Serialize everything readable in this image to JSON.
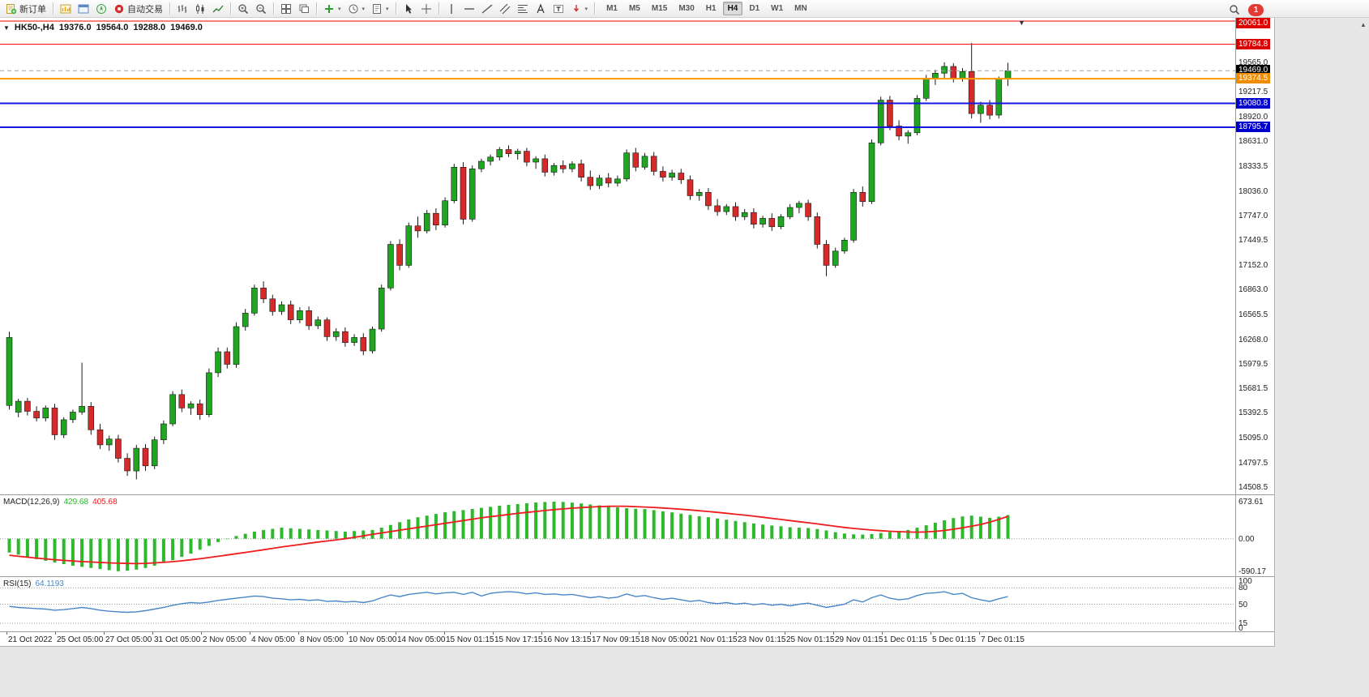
{
  "toolbar": {
    "items": [
      {
        "name": "new-order-button",
        "icon": "new-order",
        "label": "新订单"
      },
      {
        "sep": true
      },
      {
        "name": "market-watch-button",
        "icon": "market-watch"
      },
      {
        "name": "data-window-button",
        "icon": "data-window"
      },
      {
        "name": "navigator-button",
        "icon": "navigator"
      },
      {
        "name": "autotrading-button",
        "icon": "autotrading",
        "label": "自动交易"
      },
      {
        "sep": true
      },
      {
        "name": "bar-chart-button",
        "icon": "chart-bars"
      },
      {
        "name": "candlestick-chart-button",
        "icon": "chart-candles"
      },
      {
        "name": "line-chart-button",
        "icon": "chart-line"
      },
      {
        "sep": true
      },
      {
        "name": "zoom-in-button",
        "icon": "zoom-in"
      },
      {
        "name": "zoom-out-button",
        "icon": "zoom-out"
      },
      {
        "sep": true
      },
      {
        "name": "tile-windows-button",
        "icon": "tile"
      },
      {
        "name": "cascade-windows-button",
        "icon": "cascade"
      },
      {
        "sep": true
      },
      {
        "name": "indicators-button",
        "icon": "indicators",
        "caret": true
      },
      {
        "name": "periods-button",
        "icon": "clock",
        "caret": true
      },
      {
        "name": "templates-button",
        "icon": "template",
        "caret": true
      },
      {
        "sep": true
      },
      {
        "name": "cursor-button",
        "icon": "cursor"
      },
      {
        "name": "crosshair-button",
        "icon": "crosshair"
      },
      {
        "sep": true
      },
      {
        "name": "vertical-line-button",
        "icon": "vline"
      },
      {
        "name": "horizontal-line-button",
        "icon": "hline"
      },
      {
        "name": "trendline-button",
        "icon": "trend"
      },
      {
        "name": "channel-button",
        "icon": "channel"
      },
      {
        "name": "fibonacci-button",
        "icon": "fibo"
      },
      {
        "name": "text-button",
        "icon": "text"
      },
      {
        "name": "label-button",
        "icon": "textlabel"
      },
      {
        "name": "arrows-button",
        "icon": "arrowtool",
        "caret": true
      },
      {
        "sep": true
      }
    ],
    "timeframes": [
      "M1",
      "M5",
      "M15",
      "M30",
      "H1",
      "H4",
      "D1",
      "W1",
      "MN"
    ],
    "active_timeframe": "H4",
    "notification_count": "1"
  },
  "chart": {
    "symbol_period": "HK50-,H4",
    "open": "19376.0",
    "high": "19564.0",
    "low": "19288.0",
    "close": "19469.0"
  },
  "chart_data": {
    "type": "candlestick",
    "symbol": "HK50-",
    "timeframe": "H4",
    "ohlc_current": {
      "open": 19376.0,
      "high": 19564.0,
      "low": 19288.0,
      "close": 19469.0
    },
    "bull_color": "#1fa51f",
    "bear_color": "#d42a2a",
    "price_axis": {
      "range_top": 20100,
      "range_bottom": 14420,
      "tick_labels": [
        19565.0,
        19217.5,
        18920.0,
        18631.0,
        18333.5,
        18036.0,
        17747.0,
        17449.5,
        17152.0,
        16863.0,
        16565.5,
        16268.0,
        15979.5,
        15681.5,
        15392.5,
        15095.0,
        14797.5,
        14508.5
      ]
    },
    "hlines": [
      {
        "price": 20061.0,
        "color": "#f20000",
        "width": 1,
        "style": "solid",
        "badge": "#dd0000"
      },
      {
        "price": 19784.8,
        "color": "#f20000",
        "width": 1,
        "style": "solid",
        "badge": "#dd0000"
      },
      {
        "price": 19469.0,
        "color": "#a0a0a0",
        "width": 1,
        "style": "dashed",
        "badge": "#000000"
      },
      {
        "price": 19374.5,
        "color": "#ff9800",
        "width": 2,
        "style": "solid",
        "badge": "#f08c00"
      },
      {
        "price": 19080.8,
        "color": "#1515e0",
        "width": 2,
        "style": "solid",
        "badge": "#0000cc"
      },
      {
        "price": 18795.7,
        "color": "#1515e0",
        "width": 2,
        "style": "solid",
        "badge": "#0000cc"
      }
    ],
    "current_price": 19469.0,
    "candles": [
      [
        15480,
        16360,
        15430,
        16290
      ],
      [
        15400,
        15560,
        15340,
        15530
      ],
      [
        15530,
        15570,
        15360,
        15410
      ],
      [
        15410,
        15470,
        15290,
        15330
      ],
      [
        15330,
        15480,
        15290,
        15450
      ],
      [
        15450,
        15500,
        15070,
        15130
      ],
      [
        15130,
        15340,
        15090,
        15310
      ],
      [
        15310,
        15430,
        15270,
        15400
      ],
      [
        15400,
        15990,
        15370,
        15470
      ],
      [
        15470,
        15520,
        15130,
        15190
      ],
      [
        15190,
        15260,
        14960,
        15010
      ],
      [
        15010,
        15120,
        14940,
        15080
      ],
      [
        15080,
        15130,
        14800,
        14850
      ],
      [
        14850,
        14910,
        14640,
        14700
      ],
      [
        14700,
        15010,
        14600,
        14970
      ],
      [
        14970,
        15020,
        14700,
        14760
      ],
      [
        14760,
        15110,
        14720,
        15070
      ],
      [
        15070,
        15300,
        15020,
        15260
      ],
      [
        15260,
        15650,
        15230,
        15610
      ],
      [
        15610,
        15670,
        15400,
        15450
      ],
      [
        15450,
        15530,
        15370,
        15500
      ],
      [
        15500,
        15550,
        15310,
        15370
      ],
      [
        15370,
        15920,
        15340,
        15870
      ],
      [
        15870,
        16170,
        15820,
        16120
      ],
      [
        16120,
        16170,
        15920,
        15970
      ],
      [
        15970,
        16470,
        15930,
        16420
      ],
      [
        16420,
        16630,
        16370,
        16580
      ],
      [
        16580,
        16920,
        16550,
        16880
      ],
      [
        16880,
        16960,
        16700,
        16750
      ],
      [
        16750,
        16800,
        16550,
        16600
      ],
      [
        16600,
        16720,
        16560,
        16680
      ],
      [
        16680,
        16730,
        16450,
        16500
      ],
      [
        16500,
        16650,
        16460,
        16610
      ],
      [
        16610,
        16660,
        16380,
        16430
      ],
      [
        16430,
        16540,
        16390,
        16500
      ],
      [
        16500,
        16530,
        16250,
        16300
      ],
      [
        16300,
        16400,
        16250,
        16360
      ],
      [
        16360,
        16410,
        16180,
        16230
      ],
      [
        16230,
        16330,
        16190,
        16290
      ],
      [
        16290,
        16340,
        16080,
        16130
      ],
      [
        16130,
        16420,
        16100,
        16390
      ],
      [
        16390,
        16920,
        16360,
        16880
      ],
      [
        16880,
        17440,
        16850,
        17400
      ],
      [
        17400,
        17460,
        17090,
        17150
      ],
      [
        17150,
        17660,
        17120,
        17620
      ],
      [
        17620,
        17730,
        17480,
        17560
      ],
      [
        17560,
        17810,
        17530,
        17770
      ],
      [
        17770,
        17830,
        17570,
        17630
      ],
      [
        17630,
        17960,
        17600,
        17920
      ],
      [
        17920,
        18360,
        17890,
        18320
      ],
      [
        18320,
        18380,
        17640,
        17700
      ],
      [
        17700,
        18340,
        17670,
        18300
      ],
      [
        18300,
        18420,
        18260,
        18390
      ],
      [
        18390,
        18470,
        18340,
        18440
      ],
      [
        18440,
        18560,
        18400,
        18530
      ],
      [
        18530,
        18580,
        18440,
        18480
      ],
      [
        18480,
        18540,
        18410,
        18510
      ],
      [
        18510,
        18550,
        18330,
        18380
      ],
      [
        18380,
        18450,
        18300,
        18420
      ],
      [
        18420,
        18470,
        18210,
        18260
      ],
      [
        18260,
        18370,
        18220,
        18340
      ],
      [
        18340,
        18400,
        18250,
        18300
      ],
      [
        18300,
        18390,
        18260,
        18360
      ],
      [
        18360,
        18410,
        18150,
        18200
      ],
      [
        18200,
        18280,
        18050,
        18100
      ],
      [
        18100,
        18230,
        18060,
        18190
      ],
      [
        18190,
        18250,
        18080,
        18130
      ],
      [
        18130,
        18220,
        18090,
        18180
      ],
      [
        18180,
        18530,
        18150,
        18490
      ],
      [
        18490,
        18550,
        18270,
        18320
      ],
      [
        18320,
        18490,
        18290,
        18450
      ],
      [
        18450,
        18500,
        18220,
        18270
      ],
      [
        18270,
        18330,
        18150,
        18200
      ],
      [
        18200,
        18290,
        18160,
        18250
      ],
      [
        18250,
        18300,
        18120,
        18170
      ],
      [
        18170,
        18220,
        17930,
        17980
      ],
      [
        17980,
        18060,
        17920,
        18020
      ],
      [
        18020,
        18070,
        17810,
        17860
      ],
      [
        17860,
        17940,
        17740,
        17790
      ],
      [
        17790,
        17880,
        17750,
        17850
      ],
      [
        17850,
        17900,
        17680,
        17730
      ],
      [
        17730,
        17820,
        17690,
        17780
      ],
      [
        17780,
        17830,
        17590,
        17640
      ],
      [
        17640,
        17740,
        17600,
        17710
      ],
      [
        17710,
        17770,
        17560,
        17610
      ],
      [
        17610,
        17760,
        17580,
        17730
      ],
      [
        17730,
        17880,
        17700,
        17840
      ],
      [
        17840,
        17920,
        17770,
        17890
      ],
      [
        17890,
        17930,
        17680,
        17730
      ],
      [
        17730,
        17780,
        17350,
        17400
      ],
      [
        17400,
        17450,
        17020,
        17150
      ],
      [
        17150,
        17360,
        17120,
        17320
      ],
      [
        17320,
        17480,
        17290,
        17450
      ],
      [
        17450,
        18060,
        17420,
        18020
      ],
      [
        18020,
        18090,
        17850,
        17910
      ],
      [
        17910,
        18650,
        17880,
        18610
      ],
      [
        18610,
        19160,
        18580,
        19120
      ],
      [
        19120,
        19170,
        18760,
        18810
      ],
      [
        18810,
        18880,
        18640,
        18690
      ],
      [
        18690,
        18760,
        18600,
        18730
      ],
      [
        18730,
        19180,
        18700,
        19140
      ],
      [
        19140,
        19420,
        19110,
        19380
      ],
      [
        19380,
        19480,
        19300,
        19440
      ],
      [
        19440,
        19570,
        19380,
        19520
      ],
      [
        19520,
        19560,
        19330,
        19380
      ],
      [
        19380,
        19500,
        19340,
        19460
      ],
      [
        19460,
        19800,
        18900,
        18960
      ],
      [
        18960,
        19100,
        18850,
        19060
      ],
      [
        19060,
        19120,
        18890,
        18940
      ],
      [
        18940,
        19400,
        18900,
        19376
      ],
      [
        19376,
        19564,
        19288,
        19469
      ]
    ],
    "x_axis": {
      "labels": [
        "21 Oct 2022",
        "25 Oct 05:00",
        "27 Oct 05:00",
        "31 Oct 05:00",
        "2 Nov 05:00",
        "4 Nov 05:00",
        "8 Nov 05:00",
        "10 Nov 05:00",
        "14 Nov 05:00",
        "15 Nov 01:15",
        "15 Nov 17:15",
        "16 Nov 13:15",
        "17 Nov 09:15",
        "18 Nov 05:00",
        "21 Nov 01:15",
        "23 Nov 01:15",
        "25 Nov 01:15",
        "29 Nov 01:15",
        "1 Dec 01:15",
        "5 Dec 01:15",
        "7 Dec 01:15"
      ]
    },
    "macd": {
      "title": "MACD(12,26,9)",
      "current": [
        "429.68",
        "405.68"
      ],
      "axis_ticks": [
        673.61,
        0,
        -590.17
      ],
      "range_top": 790,
      "range_bottom": -680,
      "histogram_color": "#2eb82e",
      "signal_color": "#ee1c1c",
      "histogram": [
        -250,
        -290,
        -330,
        -370,
        -400,
        -430,
        -460,
        -490,
        -510,
        -530,
        -550,
        -570,
        -590,
        -580,
        -560,
        -530,
        -490,
        -440,
        -390,
        -330,
        -270,
        -200,
        -130,
        -60,
        0,
        50,
        90,
        130,
        160,
        180,
        200,
        190,
        180,
        170,
        160,
        150,
        140,
        130,
        140,
        150,
        160,
        200,
        250,
        300,
        350,
        390,
        420,
        450,
        480,
        500,
        520,
        540,
        560,
        580,
        600,
        615,
        630,
        645,
        658,
        666,
        673,
        668,
        655,
        640,
        622,
        605,
        588,
        570,
        555,
        545,
        538,
        520,
        498,
        478,
        455,
        432,
        410,
        390,
        368,
        345,
        322,
        300,
        278,
        258,
        240,
        225,
        210,
        200,
        195,
        175,
        150,
        120,
        95,
        80,
        75,
        85,
        105,
        120,
        140,
        160,
        200,
        245,
        290,
        335,
        375,
        405,
        420,
        400,
        380,
        400,
        429.68
      ],
      "signal": [
        -300,
        -318,
        -334,
        -350,
        -366,
        -380,
        -392,
        -404,
        -414,
        -422,
        -430,
        -438,
        -444,
        -448,
        -450,
        -446,
        -438,
        -428,
        -415,
        -400,
        -382,
        -362,
        -340,
        -318,
        -295,
        -272,
        -248,
        -224,
        -200,
        -175,
        -150,
        -128,
        -105,
        -82,
        -60,
        -40,
        -20,
        0,
        25,
        52,
        80,
        105,
        130,
        155,
        180,
        205,
        230,
        255,
        280,
        305,
        330,
        355,
        380,
        400,
        420,
        440,
        460,
        478,
        495,
        512,
        528,
        542,
        555,
        565,
        575,
        583,
        588,
        590,
        588,
        583,
        576,
        568,
        558,
        547,
        535,
        522,
        508,
        494,
        478,
        462,
        445,
        428,
        410,
        390,
        370,
        350,
        330,
        310,
        290,
        270,
        248,
        226,
        205,
        188,
        172,
        158,
        146,
        136,
        128,
        122,
        120,
        124,
        134,
        150,
        172,
        198,
        228,
        260,
        300,
        350,
        405.68
      ]
    },
    "rsi": {
      "title": "RSI(15)",
      "current": "64.1193",
      "period": 15,
      "levels": [
        80,
        50,
        15
      ],
      "axis_ticks": [
        100,
        80,
        50,
        15,
        0
      ],
      "range_top": 100,
      "range_bottom": 0,
      "line_color": "#4a86c8",
      "values": [
        46,
        44,
        43,
        42,
        41,
        39,
        40,
        42,
        44,
        42,
        39,
        37,
        36,
        35,
        36,
        38,
        41,
        44,
        48,
        51,
        53,
        52,
        54,
        57,
        59,
        61,
        63,
        65,
        64,
        61,
        60,
        58,
        59,
        57,
        58,
        55,
        56,
        54,
        55,
        53,
        56,
        62,
        67,
        64,
        68,
        70,
        72,
        69,
        71,
        72,
        68,
        72,
        65,
        70,
        72,
        73,
        72,
        69,
        71,
        68,
        69,
        67,
        68,
        65,
        62,
        64,
        61,
        63,
        69,
        64,
        66,
        62,
        59,
        61,
        58,
        55,
        57,
        53,
        51,
        53,
        50,
        52,
        49,
        51,
        48,
        50,
        47,
        50,
        52,
        48,
        44,
        47,
        50,
        58,
        54,
        62,
        67,
        61,
        58,
        60,
        66,
        70,
        71,
        73,
        68,
        70,
        62,
        58,
        55,
        60,
        64.12
      ]
    }
  }
}
